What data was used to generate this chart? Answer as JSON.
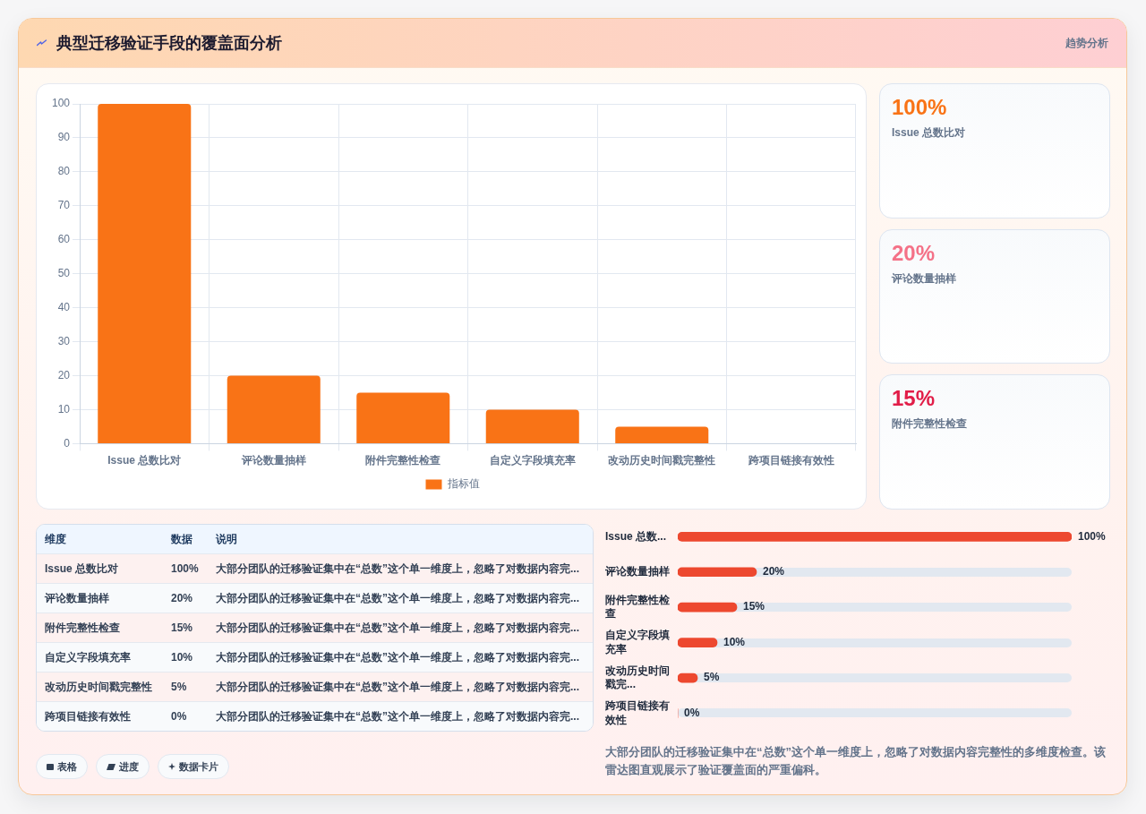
{
  "chart_data": [
    {
      "type": "bar",
      "title": "典型迁移验证手段的覆盖面分析",
      "categories": [
        "Issue 总数比对",
        "评论数量抽样",
        "附件完整性检查",
        "自定义字段填充率",
        "改动历史时间戳完整性",
        "跨项目链接有效性"
      ],
      "series": [
        {
          "name": "指标值",
          "color": "#f97316",
          "values": [
            100,
            20,
            15,
            10,
            5,
            0
          ]
        }
      ],
      "value_labels": [
        "100%",
        "20%",
        "15%",
        "10%",
        "5%",
        "0%"
      ],
      "ylim": [
        0,
        100
      ],
      "yticks": [
        0,
        10,
        20,
        30,
        40,
        50,
        60,
        70,
        80,
        90,
        100
      ],
      "grid": true,
      "legend": "bottom",
      "annotations": [
        "维度",
        "数据",
        "说明",
        "大部分团队的迁移验证集中在“总数”这个单一维度上，忽略了对数据内容完...",
        "大部分团队的迁移验证集中在“总数”这个单一维度上，忽略了对数据内容完...",
        "大部分团队的迁移验证集中在“总数”这个单一维度上，忽略了对数据内容完...",
        "大部分团队的迁移验证集中在“总数”这个单一维度上，忽略了对数据内容完...",
        "大部分团队的迁移验证集中在“总数”这个单一维度上，忽略了对数据内容完...",
        "大部分团队的迁移验证集中在“总数”这个单一维度上，忽略了对数据内容完..."
      ]
    },
    {
      "type": "other",
      "title": "趋势分析",
      "categories": [
        "Issue 总数比对",
        "评论数量抽样",
        "附件完整性检查"
      ],
      "value_labels": [
        "100%",
        "20%",
        "15%"
      ]
    },
    {
      "type": "bar",
      "orientation": "horizontal",
      "categories": [
        "Issue 总数...",
        "评论数量抽样",
        "附件完整性检查",
        "自定义字段填充率",
        "改动历史时间戳完...",
        "跨项目链接有效性"
      ],
      "values": [
        100,
        20,
        15,
        10,
        5,
        0
      ],
      "value_labels": [
        "100%",
        "20%",
        "15%",
        "10%",
        "5%",
        "0%"
      ],
      "color": "#ed482f",
      "tick_labels": "y",
      "annotations": [
        "大部分团队的迁移验证集中在“总数”这个单一维度上，忽略了对数据内容完整性的多维度检查。该雷达图直观展示了验证覆盖面的严重偏科。"
      ]
    },
    {
      "type": "other",
      "annotations": [
        "表格",
        "进度",
        "数据卡片"
      ]
    }
  ]
}
